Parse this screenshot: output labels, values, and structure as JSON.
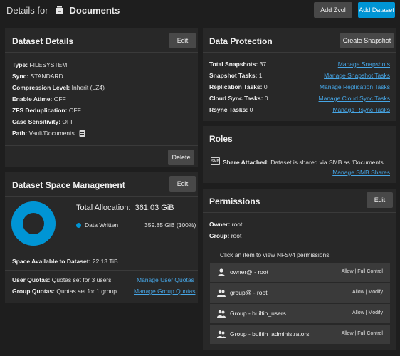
{
  "header": {
    "title_prefix": "Details for",
    "dataset_name": "Documents",
    "add_zvol_label": "Add Zvol",
    "add_dataset_label": "Add Dataset"
  },
  "dataset_details": {
    "title": "Dataset Details",
    "edit_label": "Edit",
    "delete_label": "Delete",
    "rows": [
      {
        "label": "Type:",
        "value": "FILESYSTEM"
      },
      {
        "label": "Sync:",
        "value": "STANDARD"
      },
      {
        "label": "Compression Level:",
        "value": "Inherit (LZ4)"
      },
      {
        "label": "Enable Atime:",
        "value": "OFF"
      },
      {
        "label": "ZFS Deduplication:",
        "value": "OFF"
      },
      {
        "label": "Case Sensitivity:",
        "value": "OFF"
      },
      {
        "label": "Path:",
        "value": "Vault/Documents"
      }
    ]
  },
  "space_management": {
    "title": "Dataset Space Management",
    "edit_label": "Edit",
    "total_label": "Total Allocation:",
    "total_value": "361.03 GiB",
    "legend_label": "Data Written",
    "legend_value": "359.85 GiB (100%)",
    "donut_fraction": 1.0,
    "available_label": "Space Available to Dataset:",
    "available_value": "22.13 TiB",
    "user_quotas_label": "User Quotas:",
    "user_quotas_value": "Quotas set for 3 users",
    "user_quotas_link": "Manage User Quotas",
    "group_quotas_label": "Group Quotas:",
    "group_quotas_value": "Quotas set for 1 group",
    "group_quotas_link": "Manage Group Quotas"
  },
  "data_protection": {
    "title": "Data Protection",
    "create_snapshot_label": "Create Snapshot",
    "rows": [
      {
        "label": "Total Snapshots:",
        "value": "37",
        "link": "Manage Snapshots"
      },
      {
        "label": "Snapshot Tasks:",
        "value": "1",
        "link": "Manage Snapshot Tasks"
      },
      {
        "label": "Replication Tasks:",
        "value": "0",
        "link": "Manage Replication Tasks"
      },
      {
        "label": "Cloud Sync Tasks:",
        "value": "0",
        "link": "Manage Cloud Sync Tasks"
      },
      {
        "label": "Rsync Tasks:",
        "value": "0",
        "link": "Manage Rsync Tasks"
      }
    ]
  },
  "roles": {
    "title": "Roles",
    "smb_icon_text": "SMB",
    "share_label": "Share Attached:",
    "share_value": "Dataset is shared via SMB as 'Documents'",
    "manage_link": "Manage SMB Shares"
  },
  "permissions": {
    "title": "Permissions",
    "edit_label": "Edit",
    "owner_label": "Owner:",
    "owner_value": "root",
    "group_label": "Group:",
    "group_value": "root",
    "hint": "Click an item to view NFSv4 permissions",
    "items": [
      {
        "icon": "person-icon",
        "name": "owner@ - root",
        "rights": "Allow | Full Control"
      },
      {
        "icon": "group-icon",
        "name": "group@ - root",
        "rights": "Allow | Modify"
      },
      {
        "icon": "group-icon",
        "name": "Group - builtin_users",
        "rights": "Allow | Modify"
      },
      {
        "icon": "group-icon",
        "name": "Group - builtin_administrators",
        "rights": "Allow | Full Control"
      }
    ]
  },
  "colors": {
    "accent": "#0095d5",
    "link": "#46a6e6",
    "card_bg": "#282828",
    "page_bg": "#1e1e1e"
  }
}
